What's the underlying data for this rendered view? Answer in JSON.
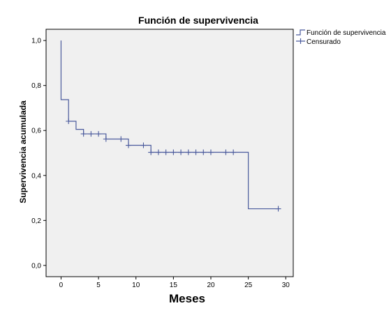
{
  "chart_data": {
    "type": "line",
    "title": "Función de supervivencia",
    "xlabel": "Meses",
    "ylabel": "Supervivencia acumulada",
    "xlim": [
      -2,
      31
    ],
    "ylim": [
      -0.05,
      1.05
    ],
    "xticks": [
      0,
      5,
      10,
      15,
      20,
      25,
      30
    ],
    "xtick_labels": [
      "0",
      "5",
      "10",
      "15",
      "20",
      "25",
      "30"
    ],
    "yticks": [
      0.0,
      0.2,
      0.4,
      0.6,
      0.8,
      1.0
    ],
    "ytick_labels": [
      "0,0",
      "0,2",
      "0,4",
      "0,6",
      "0,8",
      "1,0"
    ],
    "grid": false,
    "legend_position": "top-right",
    "series": [
      {
        "name": "Función de supervivencia",
        "kind": "step",
        "color": "#4a5a9c",
        "x": [
          0,
          0,
          1,
          1,
          2,
          2,
          3,
          3,
          6,
          6,
          9,
          9,
          12,
          12,
          25,
          25,
          29
        ],
        "y": [
          1.0,
          0.737,
          0.737,
          0.641,
          0.641,
          0.605,
          0.605,
          0.585,
          0.585,
          0.562,
          0.562,
          0.534,
          0.534,
          0.503,
          0.503,
          0.252,
          0.252
        ]
      },
      {
        "name": "Censurado",
        "kind": "markers",
        "marker": "plus",
        "color": "#4a5a9c",
        "x": [
          1,
          3,
          4,
          5,
          6,
          8,
          9,
          11,
          12,
          13,
          14,
          15,
          16,
          17,
          18,
          19,
          20,
          22,
          23,
          29
        ],
        "y": [
          0.641,
          0.585,
          0.585,
          0.585,
          0.562,
          0.562,
          0.534,
          0.534,
          0.503,
          0.503,
          0.503,
          0.503,
          0.503,
          0.503,
          0.503,
          0.503,
          0.503,
          0.503,
          0.503,
          0.252
        ]
      }
    ]
  },
  "colors": {
    "plot_background": "#f0f0f0",
    "axis": "#000000",
    "series": "#4a5a9c"
  }
}
